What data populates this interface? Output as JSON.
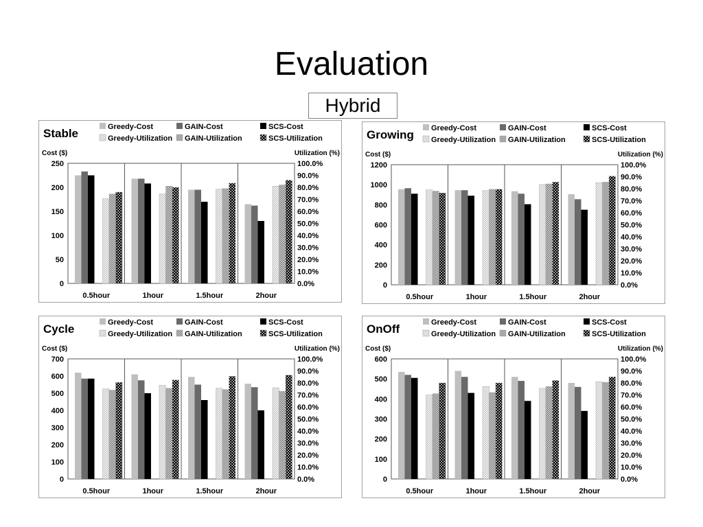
{
  "title": "Evaluation",
  "subtitle": "Hybrid",
  "chart_data": [
    {
      "type": "bar",
      "title": "Stable",
      "ylabel": "Cost ($)",
      "y2label": "Utilization (%)",
      "categories": [
        "0.5hour",
        "1hour",
        "1.5hour",
        "2hour"
      ],
      "ylim": [
        0,
        250
      ],
      "yticks": [
        0,
        50,
        100,
        150,
        200,
        250
      ],
      "y2lim": [
        0,
        100
      ],
      "y2ticks": [
        "0.0%",
        "10.0%",
        "20.0%",
        "30.0%",
        "40.0%",
        "50.0%",
        "60.0%",
        "70.0%",
        "80.0%",
        "90.0%",
        "100.0%"
      ],
      "series": [
        {
          "name": "Greedy-Cost",
          "axis": "left",
          "values": [
            225,
            218,
            195,
            165
          ]
        },
        {
          "name": "GAIN-Cost",
          "axis": "left",
          "values": [
            233,
            218,
            195,
            162
          ]
        },
        {
          "name": "SCS-Cost",
          "axis": "left",
          "values": [
            225,
            208,
            170,
            130
          ]
        },
        {
          "name": "Greedy-Utilization",
          "axis": "right",
          "values": [
            70.5,
            74.5,
            78.5,
            81
          ]
        },
        {
          "name": "GAIN-Utilization",
          "axis": "right",
          "values": [
            74.5,
            81,
            79,
            82
          ]
        },
        {
          "name": "SCS-Utilization",
          "axis": "right",
          "values": [
            76,
            80,
            83.5,
            86
          ]
        }
      ]
    },
    {
      "type": "bar",
      "title": "Growing",
      "ylabel": "Cost ($)",
      "y2label": "Utilization (%)",
      "categories": [
        "0.5hour",
        "1hour",
        "1.5hour",
        "2hour"
      ],
      "ylim": [
        0,
        1200
      ],
      "yticks": [
        0,
        200,
        400,
        600,
        800,
        1000,
        1200
      ],
      "y2lim": [
        0,
        100
      ],
      "y2ticks": [
        "0.0%",
        "10.0%",
        "20.0%",
        "30.0%",
        "40.0%",
        "50.0%",
        "60.0%",
        "70.0%",
        "80.0%",
        "90.0%",
        "100.0%"
      ],
      "series": [
        {
          "name": "Greedy-Cost",
          "axis": "left",
          "values": [
            955,
            945,
            935,
            905
          ]
        },
        {
          "name": "GAIN-Cost",
          "axis": "left",
          "values": [
            965,
            945,
            910,
            855
          ]
        },
        {
          "name": "SCS-Cost",
          "axis": "left",
          "values": [
            910,
            890,
            805,
            750
          ]
        },
        {
          "name": "Greedy-Utilization",
          "axis": "right",
          "values": [
            79,
            78.5,
            83.5,
            85
          ]
        },
        {
          "name": "GAIN-Utilization",
          "axis": "right",
          "values": [
            78,
            79.5,
            84,
            85.5
          ]
        },
        {
          "name": "SCS-Utilization",
          "axis": "right",
          "values": [
            76.5,
            79.5,
            85.5,
            90.5
          ]
        }
      ]
    },
    {
      "type": "bar",
      "title": "Cycle",
      "ylabel": "Cost ($)",
      "y2label": "Utilization (%)",
      "categories": [
        "0.5hour",
        "1hour",
        "1.5hour",
        "2hour"
      ],
      "ylim": [
        0,
        700
      ],
      "yticks": [
        0,
        100,
        200,
        300,
        400,
        500,
        600,
        700
      ],
      "y2lim": [
        0,
        100
      ],
      "y2ticks": [
        "0.0%",
        "10.0%",
        "20.0%",
        "30.0%",
        "40.0%",
        "50.0%",
        "60.0%",
        "70.0%",
        "80.0%",
        "90.0%",
        "100.0%"
      ],
      "series": [
        {
          "name": "Greedy-Cost",
          "axis": "left",
          "values": [
            620,
            610,
            595,
            555
          ]
        },
        {
          "name": "GAIN-Cost",
          "axis": "left",
          "values": [
            585,
            575,
            550,
            535
          ]
        },
        {
          "name": "SCS-Cost",
          "axis": "left",
          "values": [
            585,
            500,
            460,
            400
          ]
        },
        {
          "name": "Greedy-Utilization",
          "axis": "right",
          "values": [
            75,
            78,
            75.5,
            76
          ]
        },
        {
          "name": "GAIN-Utilization",
          "axis": "right",
          "values": [
            74,
            75.5,
            74.5,
            73
          ]
        },
        {
          "name": "SCS-Utilization",
          "axis": "right",
          "values": [
            80.5,
            82.5,
            85.5,
            86.5
          ]
        }
      ]
    },
    {
      "type": "bar",
      "title": "OnOff",
      "ylabel": "Cost ($)",
      "y2label": "Utilization (%)",
      "categories": [
        "0.5hour",
        "1hour",
        "1.5hour",
        "2hour"
      ],
      "ylim": [
        0,
        600
      ],
      "yticks": [
        0,
        100,
        200,
        300,
        400,
        500,
        600
      ],
      "y2lim": [
        0,
        100
      ],
      "y2ticks": [
        "0.0%",
        "10.0%",
        "20.0%",
        "30.0%",
        "40.0%",
        "50.0%",
        "60.0%",
        "70.0%",
        "80.0%",
        "90.0%",
        "100.0%"
      ],
      "series": [
        {
          "name": "Greedy-Cost",
          "axis": "left",
          "values": [
            535,
            540,
            510,
            480
          ]
        },
        {
          "name": "GAIN-Cost",
          "axis": "left",
          "values": [
            520,
            510,
            490,
            460
          ]
        },
        {
          "name": "SCS-Cost",
          "axis": "left",
          "values": [
            505,
            430,
            390,
            340
          ]
        },
        {
          "name": "Greedy-Utilization",
          "axis": "right",
          "values": [
            70,
            77,
            75.5,
            81
          ]
        },
        {
          "name": "GAIN-Utilization",
          "axis": "right",
          "values": [
            71,
            72,
            77,
            80.5
          ]
        },
        {
          "name": "SCS-Utilization",
          "axis": "right",
          "values": [
            80,
            80,
            82,
            85
          ]
        }
      ]
    }
  ],
  "colors": {
    "greedy_cost": "#bfbfbf",
    "gain_cost": "#6a6a6a",
    "scs_cost": "#000000",
    "panel_border": "#a0a0a0"
  }
}
